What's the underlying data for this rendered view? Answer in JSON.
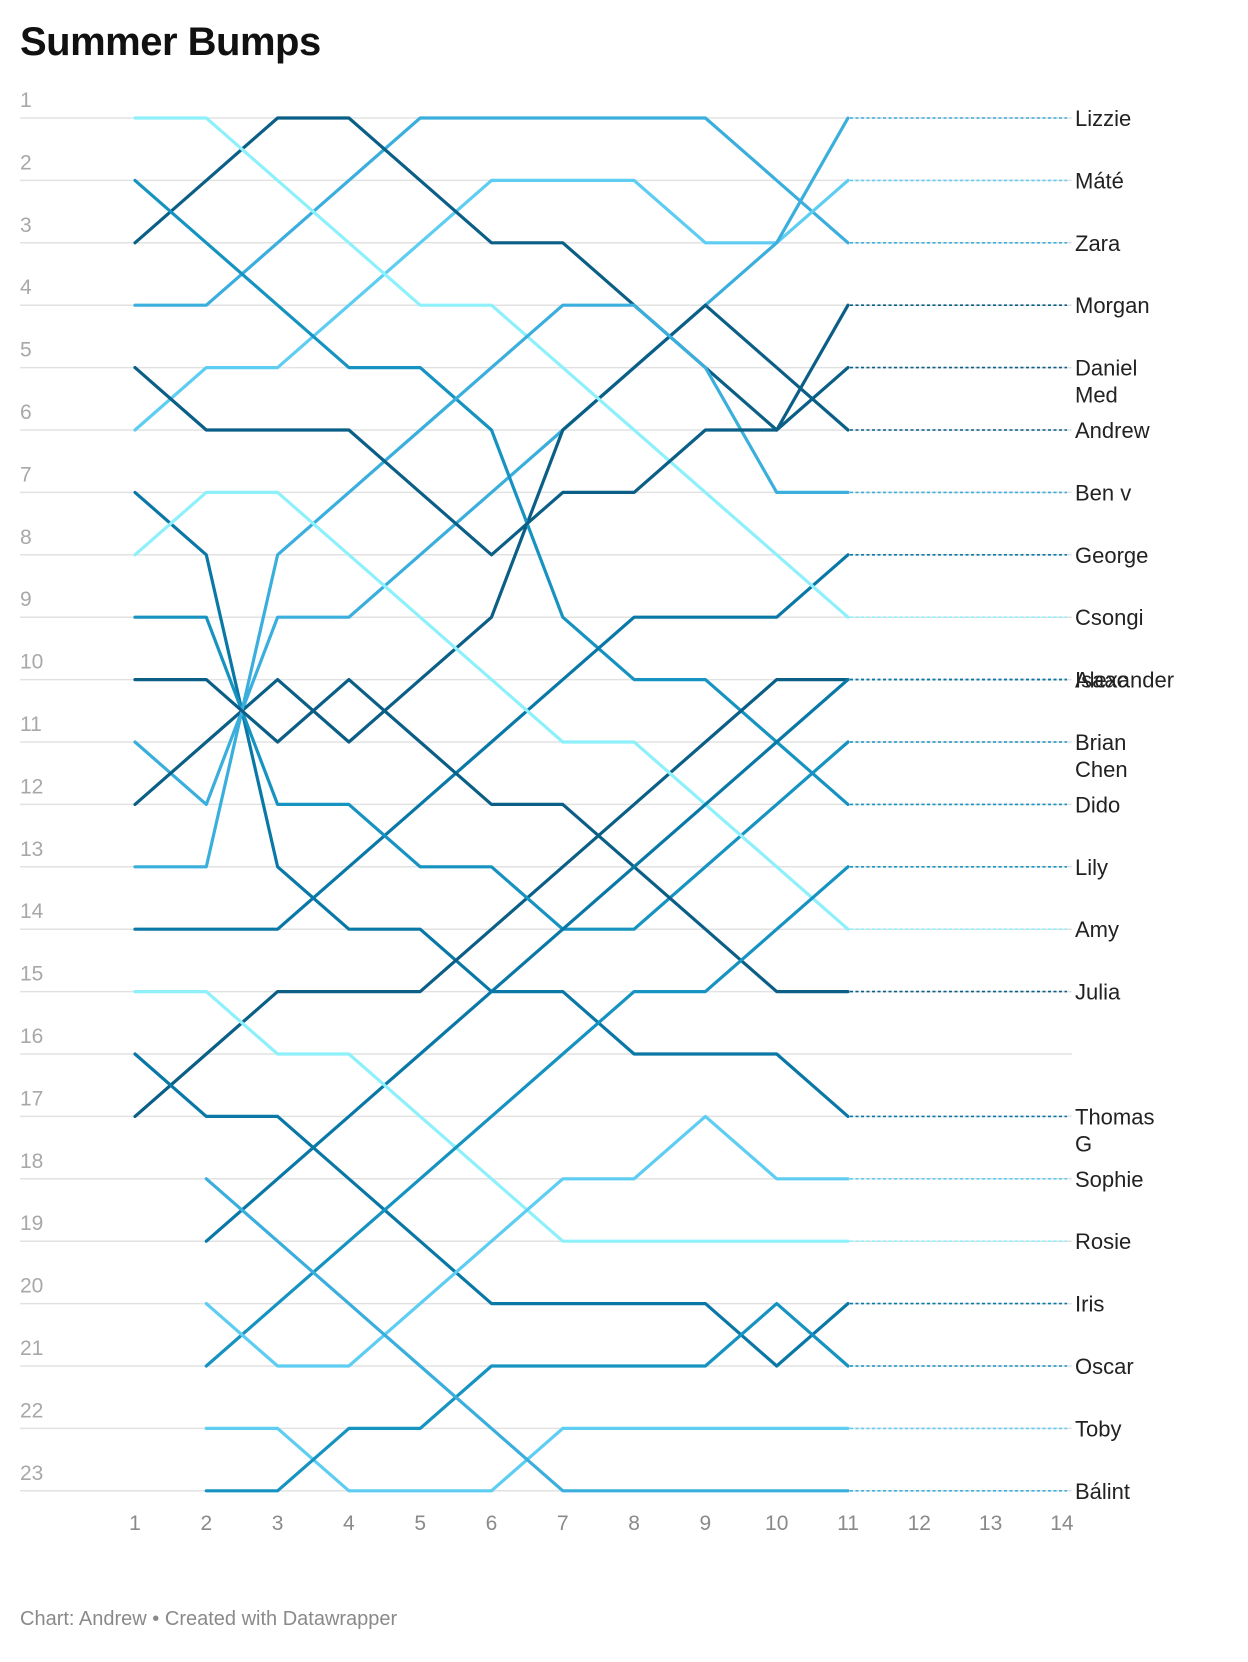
{
  "title": "Summer Bumps",
  "footer": {
    "chart_prefix": "Chart:",
    "author": "Andrew",
    "separator": "•",
    "credit": "Created with Datawrapper"
  },
  "colors": {
    "palette": [
      "#8ef0fb",
      "#5ecdf2",
      "#3aaedc",
      "#1693c0",
      "#0a78a6",
      "#0b5f86"
    ],
    "gridline": "#e2e2e2",
    "tick_text": "#8a8a8a",
    "label_text": "#222222"
  },
  "chart_data": {
    "type": "line",
    "subtype": "bump",
    "title": "Summer Bumps",
    "x_ticks": [
      1,
      2,
      3,
      4,
      5,
      6,
      7,
      8,
      9,
      10,
      11,
      12,
      13,
      14
    ],
    "y_ticks": [
      1,
      2,
      3,
      4,
      5,
      6,
      7,
      8,
      9,
      10,
      11,
      12,
      13,
      14,
      15,
      16,
      17,
      18,
      19,
      20,
      21,
      22,
      23
    ],
    "y_reversed": true,
    "xlim": [
      1,
      14
    ],
    "ylim": [
      1,
      23
    ],
    "grid": "horizontal",
    "legend": "direct labels at right with dotted leader lines",
    "series": [
      {
        "label": "Zara",
        "label_lines": [
          "Zara"
        ],
        "color": "#3aaedc",
        "x": [
          1,
          2,
          3,
          4,
          5,
          6,
          7,
          8,
          9,
          10,
          11
        ],
        "values": [
          4,
          4,
          3,
          2,
          1,
          1,
          1,
          1,
          1,
          2,
          3
        ]
      },
      {
        "label": "Máté",
        "label_lines": [
          "Máté"
        ],
        "color": "#5ecdf2",
        "x": [
          1,
          2,
          3,
          4,
          5,
          6,
          7,
          8,
          9,
          10,
          11
        ],
        "values": [
          6,
          5,
          5,
          4,
          3,
          2,
          2,
          2,
          3,
          3,
          2
        ]
      },
      {
        "label": "Lizzie",
        "label_lines": [
          "Lizzie"
        ],
        "color": "#3aaedc",
        "x": [
          1,
          2,
          3,
          4,
          5,
          6,
          7,
          8,
          9,
          10,
          11
        ],
        "values": [
          11,
          12,
          9,
          9,
          8,
          7,
          6,
          5,
          4,
          3,
          1
        ]
      },
      {
        "label": "Andrew",
        "label_lines": [
          "Andrew"
        ],
        "color": "#0b5f86",
        "x": [
          1,
          2,
          3,
          4,
          5,
          6,
          7,
          8,
          9,
          10,
          11
        ],
        "values": [
          12,
          11,
          10,
          11,
          10,
          9,
          6,
          5,
          4,
          5,
          6
        ]
      },
      {
        "label": "Thomas G",
        "label_lines": [
          "Thomas",
          "G"
        ],
        "color": "#0a78a6",
        "x": [
          1,
          2,
          3,
          4,
          5,
          6,
          7,
          8,
          9,
          10,
          11
        ],
        "values": [
          7,
          8,
          13,
          14,
          14,
          15,
          15,
          16,
          16,
          16,
          17
        ]
      },
      {
        "label": "Morgan",
        "label_lines": [
          "Morgan"
        ],
        "color": "#0b5f86",
        "x": [
          1,
          2,
          3,
          4,
          5,
          6,
          7,
          8,
          9,
          10,
          11
        ],
        "values": [
          3,
          2,
          1,
          1,
          2,
          3,
          3,
          4,
          5,
          6,
          4
        ]
      },
      {
        "label": "Dido",
        "label_lines": [
          "Dido"
        ],
        "color": "#1693c0",
        "x": [
          1,
          2,
          3,
          4,
          5,
          6,
          7,
          8,
          9,
          10,
          11
        ],
        "values": [
          2,
          3,
          4,
          5,
          5,
          6,
          9,
          10,
          10,
          11,
          12
        ]
      },
      {
        "label": "George",
        "label_lines": [
          "George"
        ],
        "color": "#0a78a6",
        "x": [
          1,
          2,
          3,
          4,
          5,
          6,
          7,
          8,
          9,
          10,
          11
        ],
        "values": [
          14,
          14,
          14,
          13,
          12,
          11,
          10,
          9,
          9,
          9,
          8
        ]
      },
      {
        "label": "Csongi",
        "label_lines": [
          "Csongi"
        ],
        "color": "#8ef0fb",
        "x": [
          1,
          2,
          3,
          4,
          5,
          6,
          7,
          8,
          9,
          10,
          11
        ],
        "values": [
          1,
          1,
          2,
          3,
          4,
          4,
          5,
          6,
          7,
          8,
          9
        ]
      },
      {
        "label": "Isaac",
        "label_lines": [
          "Isaac"
        ],
        "color": "#0b5f86",
        "x": [
          1,
          2,
          3,
          4,
          5,
          6,
          7,
          8,
          9,
          10,
          11
        ],
        "values": [
          17,
          16,
          15,
          15,
          15,
          14,
          13,
          12,
          11,
          10,
          10
        ]
      },
      {
        "label": "Brian Chen",
        "label_lines": [
          "Brian",
          "Chen"
        ],
        "color": "#1693c0",
        "x": [
          1,
          2,
          3,
          4,
          5,
          6,
          7,
          8,
          9,
          10,
          11
        ],
        "values": [
          9,
          9,
          12,
          12,
          13,
          13,
          14,
          14,
          13,
          12,
          11
        ]
      },
      {
        "label": "Ben v",
        "label_lines": [
          "Ben v"
        ],
        "color": "#3aaedc",
        "x": [
          1,
          2,
          3,
          4,
          5,
          6,
          7,
          8,
          9,
          10,
          11
        ],
        "values": [
          13,
          13,
          8,
          7,
          6,
          5,
          4,
          4,
          5,
          7,
          7
        ]
      },
      {
        "label": "Iris",
        "label_lines": [
          "Iris"
        ],
        "color": "#0a78a6",
        "x": [
          1,
          2,
          3,
          4,
          5,
          6,
          7,
          8,
          9,
          10,
          11
        ],
        "values": [
          16,
          17,
          17,
          18,
          19,
          20,
          20,
          20,
          20,
          21,
          20
        ]
      },
      {
        "label": "Amy",
        "label_lines": [
          "Amy"
        ],
        "color": "#8ef0fb",
        "x": [
          1,
          2,
          3,
          4,
          5,
          6,
          7,
          8,
          9,
          10,
          11
        ],
        "values": [
          8,
          7,
          7,
          8,
          9,
          10,
          11,
          11,
          12,
          13,
          14
        ]
      },
      {
        "label": "Daniel Med",
        "label_lines": [
          "Daniel",
          "Med"
        ],
        "color": "#0b5f86",
        "x": [
          1,
          2,
          3,
          4,
          5,
          6,
          7,
          8,
          9,
          10,
          11
        ],
        "values": [
          5,
          6,
          6,
          6,
          7,
          8,
          7,
          7,
          6,
          6,
          5
        ]
      },
      {
        "label": "Julia",
        "label_lines": [
          "Julia"
        ],
        "color": "#0b5f86",
        "x": [
          1,
          2,
          3,
          4,
          5,
          6,
          7,
          8,
          9,
          10,
          11
        ],
        "values": [
          10,
          10,
          11,
          10,
          11,
          12,
          12,
          13,
          14,
          15,
          15
        ]
      },
      {
        "label": "Alexander",
        "label_lines": [
          "Alexander"
        ],
        "color": "#0a78a6",
        "x": [
          2,
          3,
          4,
          5,
          6,
          7,
          8,
          9,
          10,
          11
        ],
        "values": [
          19,
          18,
          17,
          16,
          15,
          14,
          13,
          12,
          11,
          10
        ]
      },
      {
        "label": "Toby",
        "label_lines": [
          "Toby"
        ],
        "color": "#5ecdf2",
        "x": [
          2,
          3,
          4,
          5,
          6,
          7,
          8,
          9,
          10,
          11
        ],
        "values": [
          22,
          22,
          23,
          23,
          23,
          22,
          22,
          22,
          22,
          22
        ]
      },
      {
        "label": "Rosie",
        "label_lines": [
          "Rosie"
        ],
        "color": "#8ef0fb",
        "x": [
          1,
          2,
          3,
          4,
          5,
          6,
          7,
          8,
          9,
          10,
          11
        ],
        "values": [
          15,
          15,
          16,
          16,
          17,
          18,
          19,
          19,
          19,
          19,
          19
        ]
      },
      {
        "label": "Oscar",
        "label_lines": [
          "Oscar"
        ],
        "color": "#1693c0",
        "x": [
          2,
          3,
          4,
          5,
          6,
          7,
          8,
          9,
          10,
          11
        ],
        "values": [
          23,
          23,
          22,
          22,
          21,
          21,
          21,
          21,
          20,
          21
        ]
      },
      {
        "label": "Lily",
        "label_lines": [
          "Lily"
        ],
        "color": "#1693c0",
        "x": [
          2,
          3,
          4,
          5,
          6,
          7,
          8,
          9,
          10,
          11
        ],
        "values": [
          21,
          20,
          19,
          18,
          17,
          16,
          15,
          15,
          14,
          13
        ]
      },
      {
        "label": "Sophie",
        "label_lines": [
          "Sophie"
        ],
        "color": "#5ecdf2",
        "x": [
          2,
          3,
          4,
          5,
          6,
          7,
          8,
          9,
          10,
          11
        ],
        "values": [
          20,
          21,
          21,
          20,
          19,
          18,
          18,
          17,
          18,
          18
        ]
      },
      {
        "label": "Bálint",
        "label_lines": [
          "Bálint"
        ],
        "color": "#3aaedc",
        "x": [
          2,
          3,
          4,
          5,
          6,
          7,
          8,
          9,
          10,
          11
        ],
        "values": [
          18,
          19,
          20,
          21,
          22,
          23,
          23,
          23,
          23,
          23
        ]
      }
    ]
  }
}
